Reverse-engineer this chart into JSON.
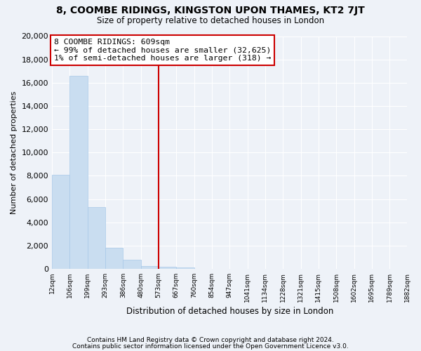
{
  "title": "8, COOMBE RIDINGS, KINGSTON UPON THAMES, KT2 7JT",
  "subtitle": "Size of property relative to detached houses in London",
  "xlabel": "Distribution of detached houses by size in London",
  "ylabel": "Number of detached properties",
  "bar_color": "#c9ddf0",
  "bar_edge_color": "#a8c8e8",
  "vline_color": "#cc0000",
  "annotation_title": "8 COOMBE RIDINGS: 609sqm",
  "annotation_line1": "← 99% of detached houses are smaller (32,625)",
  "annotation_line2": "1% of semi-detached houses are larger (318) →",
  "annotation_box_color": "white",
  "annotation_box_edge": "#cc0000",
  "bins": [
    "12sqm",
    "106sqm",
    "199sqm",
    "293sqm",
    "386sqm",
    "480sqm",
    "573sqm",
    "667sqm",
    "760sqm",
    "854sqm",
    "947sqm",
    "1041sqm",
    "1134sqm",
    "1228sqm",
    "1321sqm",
    "1415sqm",
    "1508sqm",
    "1602sqm",
    "1695sqm",
    "1789sqm",
    "1882sqm"
  ],
  "values": [
    8100,
    16600,
    5300,
    1800,
    800,
    250,
    200,
    130,
    0,
    0,
    0,
    0,
    0,
    0,
    0,
    0,
    0,
    0,
    0,
    0
  ],
  "ylim": [
    0,
    20000
  ],
  "yticks": [
    0,
    2000,
    4000,
    6000,
    8000,
    10000,
    12000,
    14000,
    16000,
    18000,
    20000
  ],
  "footer1": "Contains HM Land Registry data © Crown copyright and database right 2024.",
  "footer2": "Contains public sector information licensed under the Open Government Licence v3.0.",
  "background_color": "#eef2f8",
  "grid_color": "white",
  "vline_x_index": 6
}
